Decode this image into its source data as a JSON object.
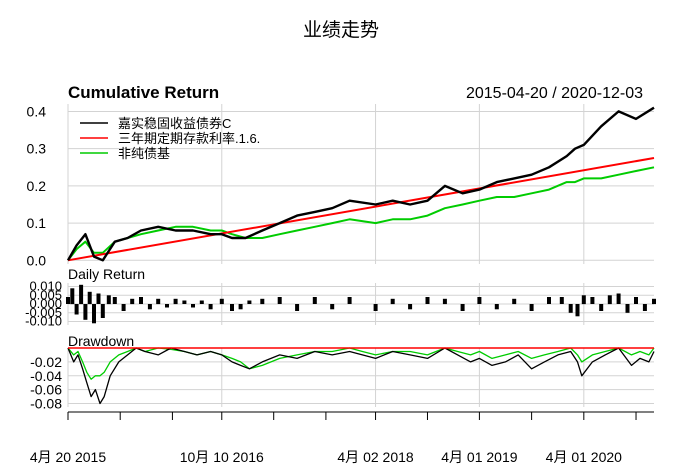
{
  "page_title": "业绩走势",
  "chart_data": [
    {
      "panel": "cumulative",
      "type": "line",
      "title": "Cumulative Return",
      "date_range": "2015-04-20 / 2020-12-03",
      "xlim": [
        "2015-04-20",
        "2020-12-03"
      ],
      "ylim": [
        -0.01,
        0.42
      ],
      "yticks": [
        0.0,
        0.1,
        0.2,
        0.3,
        0.4
      ],
      "ytick_labels": [
        "0.0",
        "0.1",
        "0.2",
        "0.3",
        "0.4"
      ],
      "grid": true,
      "legend_position": "top-left",
      "series": [
        {
          "name": "嘉实稳固收益债券C",
          "color": "#000000",
          "x": [
            "2015-04-20",
            "2015-05-20",
            "2015-06-20",
            "2015-07-20",
            "2015-08-20",
            "2015-10-01",
            "2015-11-15",
            "2016-01-01",
            "2016-03-01",
            "2016-05-01",
            "2016-07-01",
            "2016-09-01",
            "2016-10-10",
            "2016-11-15",
            "2017-01-01",
            "2017-03-01",
            "2017-05-01",
            "2017-07-01",
            "2017-09-01",
            "2017-11-01",
            "2018-01-01",
            "2018-04-02",
            "2018-06-01",
            "2018-08-01",
            "2018-10-01",
            "2018-12-01",
            "2019-02-01",
            "2019-04-01",
            "2019-06-01",
            "2019-08-01",
            "2019-10-01",
            "2019-12-01",
            "2020-02-01",
            "2020-03-01",
            "2020-04-01",
            "2020-06-01",
            "2020-08-01",
            "2020-10-01",
            "2020-12-03"
          ],
          "values": [
            0.0,
            0.04,
            0.07,
            0.01,
            0.0,
            0.05,
            0.06,
            0.08,
            0.09,
            0.08,
            0.08,
            0.07,
            0.07,
            0.06,
            0.06,
            0.08,
            0.1,
            0.12,
            0.13,
            0.14,
            0.16,
            0.15,
            0.16,
            0.15,
            0.16,
            0.2,
            0.18,
            0.19,
            0.21,
            0.22,
            0.23,
            0.25,
            0.28,
            0.3,
            0.31,
            0.36,
            0.4,
            0.38,
            0.41
          ]
        },
        {
          "name": "三年期定期存款利率.1.6.",
          "color": "#ff0000",
          "x": [
            "2015-04-20",
            "2020-12-03"
          ],
          "values": [
            0.0,
            0.275
          ]
        },
        {
          "name": "非纯债基",
          "color": "#00cc00",
          "x": [
            "2015-04-20",
            "2015-05-20",
            "2015-06-20",
            "2015-07-20",
            "2015-08-20",
            "2015-10-01",
            "2015-11-15",
            "2016-01-01",
            "2016-03-01",
            "2016-05-01",
            "2016-07-01",
            "2016-09-01",
            "2016-10-10",
            "2016-11-15",
            "2017-01-01",
            "2017-03-01",
            "2017-05-01",
            "2017-07-01",
            "2017-09-01",
            "2017-11-01",
            "2018-01-01",
            "2018-04-02",
            "2018-06-01",
            "2018-08-01",
            "2018-10-01",
            "2018-12-01",
            "2019-02-01",
            "2019-04-01",
            "2019-06-01",
            "2019-08-01",
            "2019-10-01",
            "2019-12-01",
            "2020-02-01",
            "2020-03-01",
            "2020-04-01",
            "2020-06-01",
            "2020-08-01",
            "2020-10-01",
            "2020-12-03"
          ],
          "values": [
            0.0,
            0.03,
            0.05,
            0.02,
            0.02,
            0.05,
            0.06,
            0.07,
            0.08,
            0.09,
            0.09,
            0.08,
            0.08,
            0.07,
            0.06,
            0.06,
            0.07,
            0.08,
            0.09,
            0.1,
            0.11,
            0.1,
            0.11,
            0.11,
            0.12,
            0.14,
            0.15,
            0.16,
            0.17,
            0.17,
            0.18,
            0.19,
            0.21,
            0.21,
            0.22,
            0.22,
            0.23,
            0.24,
            0.25
          ]
        }
      ]
    },
    {
      "panel": "daily_return",
      "type": "bar",
      "title": "Daily Return",
      "ylim": [
        -0.012,
        0.012
      ],
      "yticks": [
        0.01,
        0.005,
        0.0,
        -0.005,
        -0.01
      ],
      "ytick_labels": [
        "0.010",
        "0.005",
        "0.000",
        "-0.005",
        "-0.010"
      ],
      "color": "#000000",
      "x": [
        "2015-04-20",
        "2015-05-05",
        "2015-05-20",
        "2015-06-05",
        "2015-06-20",
        "2015-07-05",
        "2015-07-20",
        "2015-08-05",
        "2015-08-20",
        "2015-09-10",
        "2015-10-01",
        "2015-11-01",
        "2015-12-01",
        "2016-01-01",
        "2016-02-01",
        "2016-03-01",
        "2016-04-01",
        "2016-05-01",
        "2016-06-01",
        "2016-07-01",
        "2016-08-01",
        "2016-09-01",
        "2016-10-10",
        "2016-11-15",
        "2016-12-15",
        "2017-01-15",
        "2017-03-01",
        "2017-05-01",
        "2017-07-01",
        "2017-09-01",
        "2017-11-01",
        "2018-01-01",
        "2018-04-02",
        "2018-06-01",
        "2018-08-01",
        "2018-10-01",
        "2018-12-01",
        "2019-02-01",
        "2019-04-01",
        "2019-06-01",
        "2019-08-01",
        "2019-10-01",
        "2019-12-01",
        "2020-01-15",
        "2020-02-15",
        "2020-03-10",
        "2020-04-01",
        "2020-05-01",
        "2020-06-01",
        "2020-07-01",
        "2020-08-01",
        "2020-09-01",
        "2020-10-01",
        "2020-11-01",
        "2020-12-03"
      ],
      "values": [
        0.004,
        0.009,
        -0.006,
        0.011,
        -0.009,
        0.007,
        -0.011,
        0.006,
        -0.008,
        0.005,
        0.004,
        -0.004,
        0.003,
        0.004,
        -0.003,
        0.003,
        -0.002,
        0.003,
        0.002,
        -0.002,
        0.002,
        -0.003,
        0.003,
        -0.004,
        -0.003,
        0.002,
        0.003,
        0.004,
        -0.004,
        0.004,
        -0.003,
        0.004,
        -0.004,
        0.003,
        -0.003,
        0.004,
        0.003,
        -0.004,
        0.004,
        -0.003,
        0.003,
        -0.004,
        0.004,
        0.004,
        -0.005,
        -0.007,
        0.005,
        0.004,
        -0.004,
        0.005,
        0.006,
        -0.005,
        0.004,
        -0.004,
        0.003
      ]
    },
    {
      "panel": "drawdown",
      "type": "line",
      "title": "Drawdown",
      "ylim": [
        -0.085,
        0.0
      ],
      "yticks": [
        -0.02,
        -0.04,
        -0.06,
        -0.08
      ],
      "ytick_labels": [
        "-0.02",
        "-0.04",
        "-0.06",
        "-0.08"
      ],
      "xtick_labels": [
        "4月 20 2015",
        "10月 10 2016",
        "4月 02 2018",
        "4月 01 2019",
        "4月 01 2020"
      ],
      "xtick_dates": [
        "2015-04-20",
        "2016-10-10",
        "2018-04-02",
        "2019-04-01",
        "2020-04-01"
      ],
      "series": [
        {
          "name": "嘉实稳固收益债券C",
          "color": "#000000",
          "x": [
            "2015-04-20",
            "2015-05-10",
            "2015-05-25",
            "2015-06-10",
            "2015-06-25",
            "2015-07-10",
            "2015-07-25",
            "2015-08-10",
            "2015-08-25",
            "2015-09-15",
            "2015-10-15",
            "2015-11-15",
            "2015-12-15",
            "2016-01-15",
            "2016-03-01",
            "2016-04-15",
            "2016-06-01",
            "2016-07-15",
            "2016-09-01",
            "2016-10-10",
            "2016-11-15",
            "2016-12-15",
            "2017-01-15",
            "2017-03-01",
            "2017-05-01",
            "2017-07-01",
            "2017-09-01",
            "2017-11-01",
            "2018-01-01",
            "2018-02-15",
            "2018-04-02",
            "2018-06-01",
            "2018-08-01",
            "2018-10-01",
            "2018-12-01",
            "2019-01-15",
            "2019-03-01",
            "2019-04-01",
            "2019-05-15",
            "2019-07-01",
            "2019-08-15",
            "2019-10-01",
            "2019-11-15",
            "2020-01-01",
            "2020-02-15",
            "2020-03-10",
            "2020-03-25",
            "2020-05-01",
            "2020-06-15",
            "2020-08-01",
            "2020-09-15",
            "2020-10-15",
            "2020-11-15",
            "2020-12-03"
          ],
          "values": [
            0.0,
            -0.02,
            -0.01,
            -0.03,
            -0.05,
            -0.07,
            -0.06,
            -0.08,
            -0.07,
            -0.04,
            -0.02,
            -0.01,
            0.0,
            -0.005,
            -0.01,
            0.0,
            -0.005,
            -0.01,
            -0.005,
            -0.01,
            -0.02,
            -0.025,
            -0.03,
            -0.02,
            -0.01,
            -0.015,
            -0.005,
            -0.01,
            -0.005,
            -0.01,
            -0.015,
            -0.005,
            -0.01,
            -0.015,
            0.0,
            -0.01,
            -0.02,
            -0.015,
            -0.025,
            -0.02,
            -0.01,
            -0.03,
            -0.02,
            -0.01,
            -0.005,
            -0.02,
            -0.04,
            -0.02,
            -0.01,
            0.0,
            -0.025,
            -0.015,
            -0.02,
            -0.005
          ]
        },
        {
          "name": "三年期定期存款利率.1.6.",
          "color": "#ff0000",
          "x": [
            "2015-04-20",
            "2020-12-03"
          ],
          "values": [
            0.0,
            0.0
          ]
        },
        {
          "name": "非纯债基",
          "color": "#00cc00",
          "x": [
            "2015-04-20",
            "2015-05-10",
            "2015-05-25",
            "2015-06-10",
            "2015-06-25",
            "2015-07-10",
            "2015-07-25",
            "2015-08-10",
            "2015-08-25",
            "2015-09-15",
            "2015-10-15",
            "2015-11-15",
            "2015-12-15",
            "2016-01-15",
            "2016-03-01",
            "2016-04-15",
            "2016-06-01",
            "2016-07-15",
            "2016-09-01",
            "2016-10-10",
            "2016-11-15",
            "2016-12-15",
            "2017-01-15",
            "2017-03-01",
            "2017-05-01",
            "2017-07-01",
            "2017-09-01",
            "2017-11-01",
            "2018-01-01",
            "2018-02-15",
            "2018-04-02",
            "2018-06-01",
            "2018-08-01",
            "2018-10-01",
            "2018-12-01",
            "2019-01-15",
            "2019-03-01",
            "2019-04-01",
            "2019-05-15",
            "2019-07-01",
            "2019-08-15",
            "2019-10-01",
            "2019-11-15",
            "2020-01-01",
            "2020-02-15",
            "2020-03-10",
            "2020-03-25",
            "2020-05-01",
            "2020-06-15",
            "2020-08-01",
            "2020-09-15",
            "2020-10-15",
            "2020-11-15",
            "2020-12-03"
          ],
          "values": [
            0.0,
            -0.01,
            -0.005,
            -0.02,
            -0.035,
            -0.045,
            -0.04,
            -0.04,
            -0.035,
            -0.02,
            -0.01,
            -0.005,
            0.0,
            -0.005,
            0.0,
            -0.002,
            -0.005,
            -0.01,
            -0.005,
            -0.01,
            -0.015,
            -0.02,
            -0.03,
            -0.025,
            -0.015,
            -0.01,
            -0.005,
            -0.005,
            0.0,
            -0.005,
            -0.01,
            -0.005,
            -0.005,
            -0.01,
            0.0,
            -0.005,
            -0.01,
            -0.005,
            -0.015,
            -0.01,
            -0.005,
            -0.015,
            -0.01,
            -0.005,
            0.0,
            -0.01,
            -0.02,
            -0.01,
            -0.005,
            0.0,
            -0.01,
            -0.005,
            -0.01,
            0.0
          ]
        }
      ]
    }
  ]
}
